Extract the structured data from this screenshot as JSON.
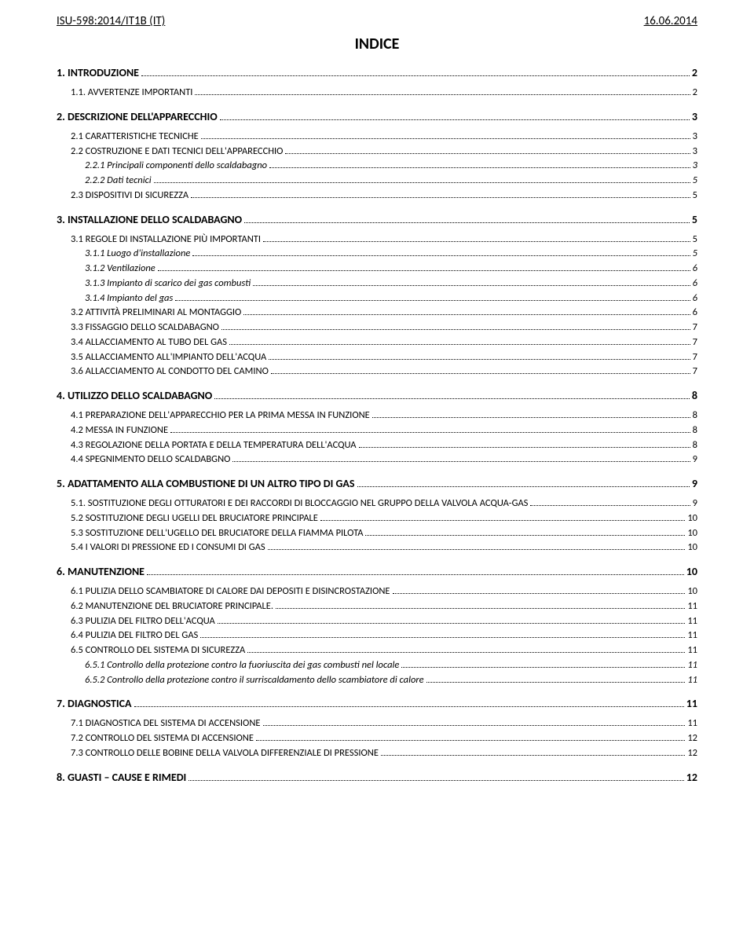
{
  "header": {
    "left": "ISU-598:2014/IT1B (IT)",
    "right": "16.06.2014"
  },
  "title": "INDICE",
  "toc": [
    {
      "level": 1,
      "num": "1.",
      "text": "INTRODUZIONE",
      "page": "2"
    },
    {
      "level": 2,
      "num": "1.1.",
      "text": "AVVERTENZE IMPORTANTI",
      "page": "2"
    },
    {
      "level": 1,
      "num": "2.",
      "text": "DESCRIZIONE DELL'APPARECCHIO",
      "page": "3"
    },
    {
      "level": 2,
      "num": "2.1",
      "text": "CARATTERISTICHE TECNICHE",
      "page": "3"
    },
    {
      "level": 2,
      "num": "2.2",
      "text": "COSTRUZIONE E DATI TECNICI DELL'APPARECCHIO",
      "page": "3"
    },
    {
      "level": 3,
      "num": "2.2.1",
      "text": "Principali componenti dello scaldabagno",
      "page": "3"
    },
    {
      "level": 3,
      "num": "2.2.2",
      "text": "Dati tecnici",
      "page": "5"
    },
    {
      "level": 2,
      "num": "2.3",
      "text": "DISPOSITIVI DI SICUREZZA",
      "page": "5"
    },
    {
      "level": 1,
      "num": "3.",
      "text": "INSTALLAZIONE DELLO SCALDABAGNO",
      "page": "5"
    },
    {
      "level": 2,
      "num": "3.1",
      "text": "REGOLE DI INSTALLAZIONE PIÙ IMPORTANTI",
      "page": "5"
    },
    {
      "level": 3,
      "num": "3.1.1",
      "text": "Luogo d'installazione",
      "page": "5"
    },
    {
      "level": 3,
      "num": "3.1.2",
      "text": "Ventilazione",
      "page": "6"
    },
    {
      "level": 3,
      "num": "3.1.3",
      "text": "Impianto di scarico dei gas combusti",
      "page": "6"
    },
    {
      "level": 3,
      "num": "3.1.4",
      "text": "Impianto del gas",
      "page": "6"
    },
    {
      "level": 2,
      "num": "3.2",
      "text": "ATTIVITÀ PRELIMINARI AL MONTAGGIO",
      "page": "6"
    },
    {
      "level": 2,
      "num": "3.3",
      "text": "FISSAGGIO DELLO SCALDABAGNO",
      "page": "7"
    },
    {
      "level": 2,
      "num": "3.4",
      "text": "ALLACCIAMENTO AL TUBO DEL GAS",
      "page": "7"
    },
    {
      "level": 2,
      "num": "3.5",
      "text": "ALLACCIAMENTO ALL'IMPIANTO DELL'ACQUA",
      "page": "7"
    },
    {
      "level": 2,
      "num": "3.6",
      "text": "ALLACCIAMENTO AL CONDOTTO DEL CAMINO",
      "page": "7"
    },
    {
      "level": 1,
      "num": "4.",
      "text": "UTILIZZO DELLO SCALDABAGNO",
      "page": "8"
    },
    {
      "level": 2,
      "num": "4.1",
      "text": "PREPARAZIONE DELL'APPARECCHIO PER LA PRIMA MESSA IN FUNZIONE",
      "page": "8"
    },
    {
      "level": 2,
      "num": "4.2",
      "text": "MESSA IN FUNZIONE",
      "page": "8"
    },
    {
      "level": 2,
      "num": "4.3",
      "text": "REGOLAZIONE DELLA PORTATA E DELLA TEMPERATURA DELL'ACQUA",
      "page": "8"
    },
    {
      "level": 2,
      "num": "4.4",
      "text": "SPEGNIMENTO DELLO SCALDABGNO",
      "page": "9"
    },
    {
      "level": 1,
      "num": "5.",
      "text": "ADATTAMENTO ALLA COMBUSTIONE DI UN ALTRO TIPO DI GAS",
      "page": "9"
    },
    {
      "level": 2,
      "num": "5.1.",
      "text": "SOSTITUZIONE DEGLI OTTURATORI E DEI RACCORDI DI BLOCCAGGIO NEL GRUPPO DELLA VALVOLA ACQUA-GAS",
      "page": "9"
    },
    {
      "level": 2,
      "num": "5.2",
      "text": "SOSTITUZIONE DEGLI UGELLI DEL BRUCIATORE PRINCIPALE",
      "page": "10"
    },
    {
      "level": 2,
      "num": "5.3",
      "text": "SOSTITUZIONE DELL'UGELLO DEL BRUCIATORE DELLA FIAMMA PILOTA",
      "page": "10"
    },
    {
      "level": 2,
      "num": "5.4",
      "text": "I VALORI DI PRESSIONE ED I CONSUMI DI GAS",
      "page": "10"
    },
    {
      "level": 1,
      "num": "6.",
      "text": "MANUTENZIONE",
      "page": "10"
    },
    {
      "level": 2,
      "num": "6.1",
      "text": "PULIZIA DELLO SCAMBIATORE DI CALORE DAI DEPOSITI E DISINCROSTAZIONE",
      "page": "10"
    },
    {
      "level": 2,
      "num": "6.2",
      "text": "MANUTENZIONE DEL BRUCIATORE PRINCIPALE.",
      "page": "11"
    },
    {
      "level": 2,
      "num": "6.3",
      "text": "PULIZIA DEL FILTRO DELL'ACQUA",
      "page": "11"
    },
    {
      "level": 2,
      "num": "6.4",
      "text": "PULIZIA DEL FILTRO DEL GAS",
      "page": "11"
    },
    {
      "level": 2,
      "num": "6.5",
      "text": "CONTROLLO DEL SISTEMA DI SICUREZZA",
      "page": "11"
    },
    {
      "level": 3,
      "num": "6.5.1",
      "text": "Controllo della protezione contro la fuoriuscita dei gas combusti nel locale",
      "page": "11"
    },
    {
      "level": 3,
      "num": "6.5.2",
      "text": "Controllo della protezione contro il surriscaldamento dello scambiatore di calore",
      "page": "11"
    },
    {
      "level": 1,
      "num": "7.",
      "text": "DIAGNOSTICA",
      "page": "11"
    },
    {
      "level": 2,
      "num": "7.1",
      "text": "DIAGNOSTICA DEL SISTEMA DI ACCENSIONE",
      "page": "11"
    },
    {
      "level": 2,
      "num": "7.2",
      "text": "CONTROLLO DEL SISTEMA DI ACCENSIONE",
      "page": "12"
    },
    {
      "level": 2,
      "num": "7.3",
      "text": "CONTROLLO DELLE BOBINE DELLA VALVOLA DIFFERENZIALE DI PRESSIONE",
      "page": "12"
    },
    {
      "level": 1,
      "num": "8.",
      "text": "GUASTI – CAUSE E RIMEDI",
      "page": "12"
    }
  ]
}
